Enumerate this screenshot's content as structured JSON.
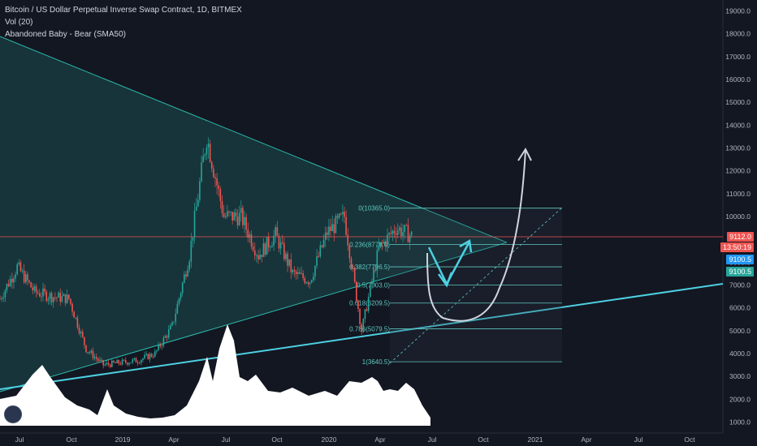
{
  "legend": {
    "symbol": "Bitcoin / US Dollar Perpetual Inverse Swap Contract, 1D, BITMEX",
    "volume": "Vol (20)",
    "indicator": "Abandoned Baby - Bear (SMA50)"
  },
  "price_axis": {
    "last_price": "9112.0",
    "countdown": "13:50:19",
    "level_a": "9100.5",
    "level_b": "9100.5"
  },
  "colors": {
    "background": "#131722",
    "candles_up": "#26a69a",
    "candles_down": "#ef5350",
    "triangle": "#2bbbad",
    "trendline": "#4dd0e1",
    "fib": "#5fc8c0",
    "last_price_line": "#ef5350",
    "volume": "#ffffff",
    "arrow": "#4dd0e1",
    "projection": "#d1d4dc"
  },
  "chart_data": {
    "type": "candlestick",
    "x_tick_labels": [
      "Jul",
      "Oct",
      "2019",
      "Apr",
      "Jul",
      "Oct",
      "2020",
      "Apr",
      "Jul",
      "Oct",
      "2021",
      "Apr",
      "Jul",
      "Oct"
    ],
    "y_tick_labels": [
      "19000.0",
      "18000.0",
      "17000.0",
      "16000.0",
      "15000.0",
      "14000.0",
      "13000.0",
      "12000.0",
      "11000.0",
      "10000.0",
      "9000.0",
      "8000.0",
      "7000.0",
      "6000.0",
      "5000.0",
      "4000.0",
      "3000.0",
      "2000.0",
      "1000.0"
    ],
    "ylim": [
      1000,
      19000
    ],
    "fib_levels": [
      {
        "label": "0(10365.0)",
        "value": 10365.0
      },
      {
        "label": "0.236(8778.0)",
        "value": 8778.0
      },
      {
        "label": "0.382(7796.5)",
        "value": 7796.5
      },
      {
        "label": "0.5(7003.0)",
        "value": 7003.0
      },
      {
        "label": "0.618(6209.5)",
        "value": 6209.5
      },
      {
        "label": "0.786(5079.5)",
        "value": 5079.5
      },
      {
        "label": "1(3640.5)",
        "value": 3640.5
      }
    ],
    "price_path": [
      {
        "date": "Jun 2018",
        "close": 6400
      },
      {
        "date": "Jul 2018",
        "close": 7800
      },
      {
        "date": "Aug 2018",
        "close": 6700
      },
      {
        "date": "Sep 2018",
        "close": 6500
      },
      {
        "date": "Oct 2018",
        "close": 6400
      },
      {
        "date": "Nov 2018",
        "close": 4200
      },
      {
        "date": "Dec 2018",
        "close": 3500
      },
      {
        "date": "Jan 2019",
        "close": 3600
      },
      {
        "date": "Feb 2019",
        "close": 3700
      },
      {
        "date": "Mar 2019",
        "close": 4000
      },
      {
        "date": "Apr 2019",
        "close": 5200
      },
      {
        "date": "May 2019",
        "close": 8300
      },
      {
        "date": "Jun 2019",
        "close": 13500
      },
      {
        "date": "Jul 2019",
        "close": 10000
      },
      {
        "date": "Aug 2019",
        "close": 10000
      },
      {
        "date": "Sep 2019",
        "close": 8300
      },
      {
        "date": "Oct 2019",
        "close": 9200
      },
      {
        "date": "Nov 2019",
        "close": 7500
      },
      {
        "date": "Dec 2019",
        "close": 7200
      },
      {
        "date": "Jan 2020",
        "close": 9300
      },
      {
        "date": "Feb 2020",
        "close": 10000
      },
      {
        "date": "Mar 2020",
        "close": 5000
      },
      {
        "date": "Apr 2020",
        "close": 8600
      },
      {
        "date": "May 2020",
        "close": 9500
      },
      {
        "date": "Jun 2020",
        "close": 9112
      }
    ]
  }
}
